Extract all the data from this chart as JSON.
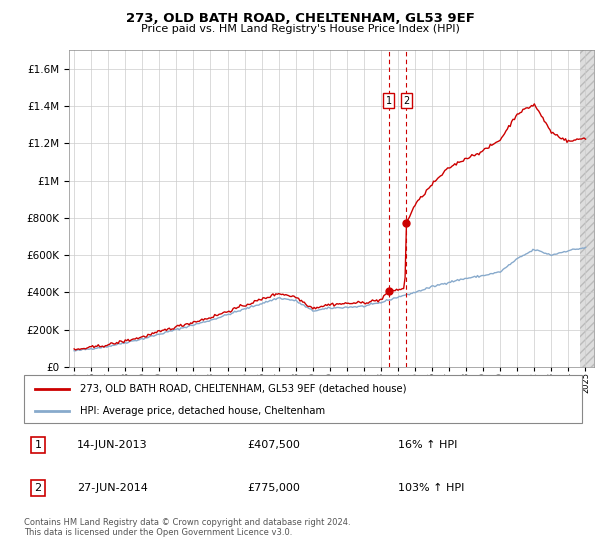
{
  "title": "273, OLD BATH ROAD, CHELTENHAM, GL53 9EF",
  "subtitle": "Price paid vs. HM Land Registry's House Price Index (HPI)",
  "legend_line1": "273, OLD BATH ROAD, CHELTENHAM, GL53 9EF (detached house)",
  "legend_line2": "HPI: Average price, detached house, Cheltenham",
  "transaction1_date": "14-JUN-2013",
  "transaction1_price": 407500,
  "transaction1_pct": "16% ↑ HPI",
  "transaction2_date": "27-JUN-2014",
  "transaction2_price": 775000,
  "transaction2_pct": "103% ↑ HPI",
  "footer": "Contains HM Land Registry data © Crown copyright and database right 2024.\nThis data is licensed under the Open Government Licence v3.0.",
  "red_color": "#cc0000",
  "blue_color": "#88aacc",
  "sale1_year": 2013.45,
  "sale2_year": 2014.5,
  "sale1_price": 407500,
  "sale2_price": 775000,
  "ylim_max": 1700000,
  "xlim_min": 1994.7,
  "xlim_max": 2025.5
}
